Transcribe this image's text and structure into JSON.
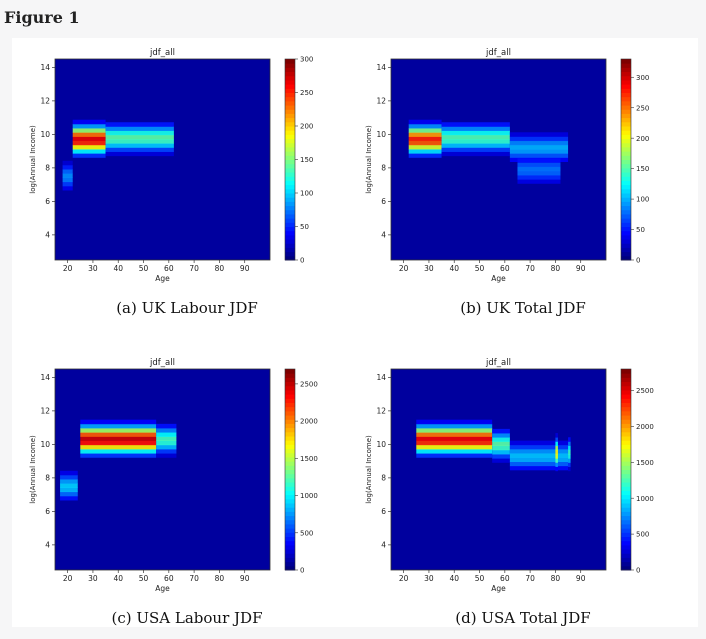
{
  "figure_title": "Figure 1",
  "chart_data": [
    {
      "type": "heatmap",
      "panel": "a",
      "title": "jdf_all",
      "caption": "(a) UK Labour JDF",
      "xlabel": "Age",
      "ylabel": "log(Annual Income)",
      "xlim": [
        15,
        100
      ],
      "ylim": [
        2.5,
        14.5
      ],
      "xticks": [
        20,
        30,
        40,
        50,
        60,
        70,
        80,
        90
      ],
      "yticks": [
        4,
        6,
        8,
        10,
        12,
        14
      ],
      "colorbar": {
        "min": 0,
        "max": 300,
        "ticks": [
          0,
          50,
          100,
          150,
          200,
          250,
          300
        ]
      },
      "colormap": [
        "#00007f",
        "#0000ff",
        "#007fff",
        "#00ffff",
        "#7fff7f",
        "#ffff00",
        "#ff7f00",
        "#ff0000",
        "#7f0000"
      ],
      "hotspots": [
        {
          "age_from": 22,
          "age_to": 35,
          "log_income": 9.7,
          "value": 270
        },
        {
          "age_from": 35,
          "age_to": 62,
          "log_income": 9.8,
          "value": 140
        },
        {
          "age_from": 18,
          "age_to": 22,
          "log_income": 7.5,
          "value": 80
        }
      ]
    },
    {
      "type": "heatmap",
      "panel": "b",
      "title": "jdf_all",
      "caption": "(b) UK Total JDF",
      "xlabel": "Age",
      "ylabel": "log(Annual Income)",
      "xlim": [
        15,
        100
      ],
      "ylim": [
        2.5,
        14.5
      ],
      "xticks": [
        20,
        30,
        40,
        50,
        60,
        70,
        80,
        90
      ],
      "yticks": [
        4,
        6,
        8,
        10,
        12,
        14
      ],
      "colorbar": {
        "min": 0,
        "max": 330,
        "ticks": [
          0,
          50,
          100,
          150,
          200,
          250,
          300
        ]
      },
      "colormap": [
        "#00007f",
        "#0000ff",
        "#007fff",
        "#00ffff",
        "#7fff7f",
        "#ffff00",
        "#ff7f00",
        "#ff0000",
        "#7f0000"
      ],
      "hotspots": [
        {
          "age_from": 22,
          "age_to": 35,
          "log_income": 9.7,
          "value": 280
        },
        {
          "age_from": 35,
          "age_to": 62,
          "log_income": 9.8,
          "value": 150
        },
        {
          "age_from": 62,
          "age_to": 85,
          "log_income": 9.2,
          "value": 100
        },
        {
          "age_from": 65,
          "age_to": 82,
          "log_income": 7.9,
          "value": 80
        }
      ]
    },
    {
      "type": "heatmap",
      "panel": "c",
      "title": "jdf_all",
      "caption": "(c) USA Labour JDF",
      "xlabel": "Age",
      "ylabel": "log(Annual Income)",
      "xlim": [
        15,
        100
      ],
      "ylim": [
        2.5,
        14.5
      ],
      "xticks": [
        20,
        30,
        40,
        50,
        60,
        70,
        80,
        90
      ],
      "yticks": [
        4,
        6,
        8,
        10,
        12,
        14
      ],
      "colorbar": {
        "min": 0,
        "max": 2700,
        "ticks": [
          0,
          500,
          1000,
          1500,
          2000,
          2500
        ]
      },
      "colormap": [
        "#00007f",
        "#0000ff",
        "#007fff",
        "#00ffff",
        "#7fff7f",
        "#ffff00",
        "#ff7f00",
        "#ff0000",
        "#7f0000"
      ],
      "hotspots": [
        {
          "age_from": 25,
          "age_to": 55,
          "log_income": 10.3,
          "value": 2500
        },
        {
          "age_from": 55,
          "age_to": 63,
          "log_income": 10.3,
          "value": 1200
        },
        {
          "age_from": 17,
          "age_to": 24,
          "log_income": 7.5,
          "value": 900
        }
      ]
    },
    {
      "type": "heatmap",
      "panel": "d",
      "title": "jdf_all",
      "caption": "(d) USA Total JDF",
      "xlabel": "Age",
      "ylabel": "log(Annual Income)",
      "xlim": [
        15,
        100
      ],
      "ylim": [
        2.5,
        14.5
      ],
      "xticks": [
        20,
        30,
        40,
        50,
        60,
        70,
        80,
        90
      ],
      "yticks": [
        4,
        6,
        8,
        10,
        12,
        14
      ],
      "colorbar": {
        "min": 0,
        "max": 2800,
        "ticks": [
          0,
          500,
          1000,
          1500,
          2000,
          2500
        ]
      },
      "colormap": [
        "#00007f",
        "#0000ff",
        "#007fff",
        "#00ffff",
        "#7fff7f",
        "#ffff00",
        "#ff7f00",
        "#ff0000",
        "#7f0000"
      ],
      "hotspots": [
        {
          "age_from": 25,
          "age_to": 55,
          "log_income": 10.3,
          "value": 2500
        },
        {
          "age_from": 55,
          "age_to": 62,
          "log_income": 10.0,
          "value": 1300
        },
        {
          "age_from": 62,
          "age_to": 85,
          "log_income": 9.3,
          "value": 900
        },
        {
          "age_from": 80,
          "age_to": 81,
          "log_income": 9.5,
          "value": 1800
        },
        {
          "age_from": 85,
          "age_to": 86,
          "log_income": 9.5,
          "value": 1200
        }
      ]
    }
  ]
}
